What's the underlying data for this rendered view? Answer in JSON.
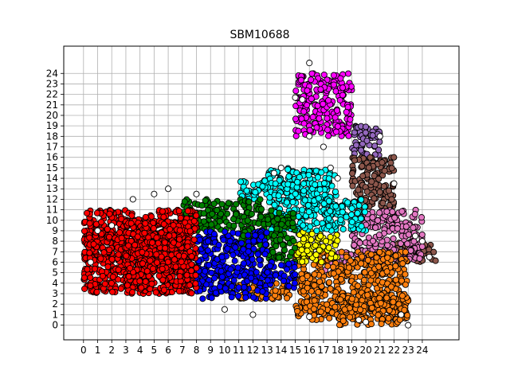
{
  "chart_data": {
    "type": "scatter",
    "title": "SBM10688",
    "xlabel": "",
    "ylabel": "",
    "xlim": [
      -1.4,
      26.6
    ],
    "ylim": [
      -1.4,
      26.6
    ],
    "x_ticks": [
      0,
      1,
      2,
      3,
      4,
      5,
      6,
      7,
      8,
      9,
      10,
      11,
      12,
      13,
      14,
      15,
      16,
      17,
      18,
      19,
      20,
      21,
      22,
      23,
      24
    ],
    "y_ticks": [
      0,
      1,
      2,
      3,
      4,
      5,
      6,
      7,
      8,
      9,
      10,
      11,
      12,
      13,
      14,
      15,
      16,
      17,
      18,
      19,
      20,
      21,
      22,
      23,
      24
    ],
    "grid": true,
    "legend": "none",
    "clusters": [
      {
        "color": "#ff0000",
        "regions": [
          [
            0,
            5,
            7,
            10
          ],
          [
            0,
            3,
            8,
            11
          ],
          [
            3,
            3,
            8,
            10
          ]
        ]
      },
      {
        "color": "#0000ff",
        "regions": [
          [
            8,
            2.5,
            13,
            9
          ],
          [
            13,
            3.5,
            15,
            6
          ]
        ]
      },
      {
        "color": "#008000",
        "regions": [
          [
            7,
            9,
            13,
            12
          ],
          [
            13,
            6,
            15,
            11
          ],
          [
            11,
            7,
            13,
            9
          ]
        ]
      },
      {
        "color": "#00ffff",
        "regions": [
          [
            13,
            9,
            18,
            15
          ],
          [
            17,
            9,
            20,
            12
          ],
          [
            11,
            12,
            14,
            14
          ]
        ]
      },
      {
        "color": "#ffff00",
        "regions": [
          [
            15,
            6,
            18,
            9
          ]
        ]
      },
      {
        "color": "#ff7f0e",
        "regions": [
          [
            15,
            0.5,
            23,
            7
          ],
          [
            11,
            2.5,
            15,
            4
          ],
          [
            18,
            0,
            23,
            3
          ]
        ]
      },
      {
        "color": "#e377c2",
        "regions": [
          [
            19,
            6,
            24,
            11
          ],
          [
            17,
            5,
            19,
            7
          ]
        ]
      },
      {
        "color": "#8c564b",
        "regions": [
          [
            19,
            11,
            22,
            16
          ],
          [
            22,
            6,
            25,
            8
          ]
        ]
      },
      {
        "color": "#9467bd",
        "regions": [
          [
            19,
            16,
            21,
            19
          ]
        ]
      },
      {
        "color": "#ff00ff",
        "regions": [
          [
            15,
            18,
            19,
            24
          ]
        ]
      },
      {
        "color": "#ffffff",
        "regions": [
          [
            -0.5,
            0,
            25,
            25
          ]
        ]
      }
    ],
    "outliers": [
      [
        16,
        25
      ],
      [
        15.5,
        21.5
      ],
      [
        17,
        17
      ],
      [
        22.5,
        1
      ],
      [
        23,
        0
      ],
      [
        10,
        1.5
      ],
      [
        12,
        1
      ],
      [
        16,
        0.8
      ],
      [
        17.5,
        15
      ],
      [
        3.5,
        12
      ],
      [
        6,
        13
      ],
      [
        8,
        12.5
      ],
      [
        1,
        9
      ],
      [
        2,
        9.5
      ],
      [
        0.5,
        6
      ],
      [
        5,
        12.5
      ],
      [
        14,
        15
      ],
      [
        21,
        18
      ],
      [
        22,
        13.5
      ],
      [
        19.5,
        0.5
      ],
      [
        20,
        0.3
      ],
      [
        18,
        14
      ],
      [
        24,
        8
      ],
      [
        24.5,
        6.5
      ],
      [
        23.5,
        8.5
      ],
      [
        13.5,
        14.5
      ],
      [
        16,
        18
      ],
      [
        15,
        21.7
      ]
    ]
  }
}
